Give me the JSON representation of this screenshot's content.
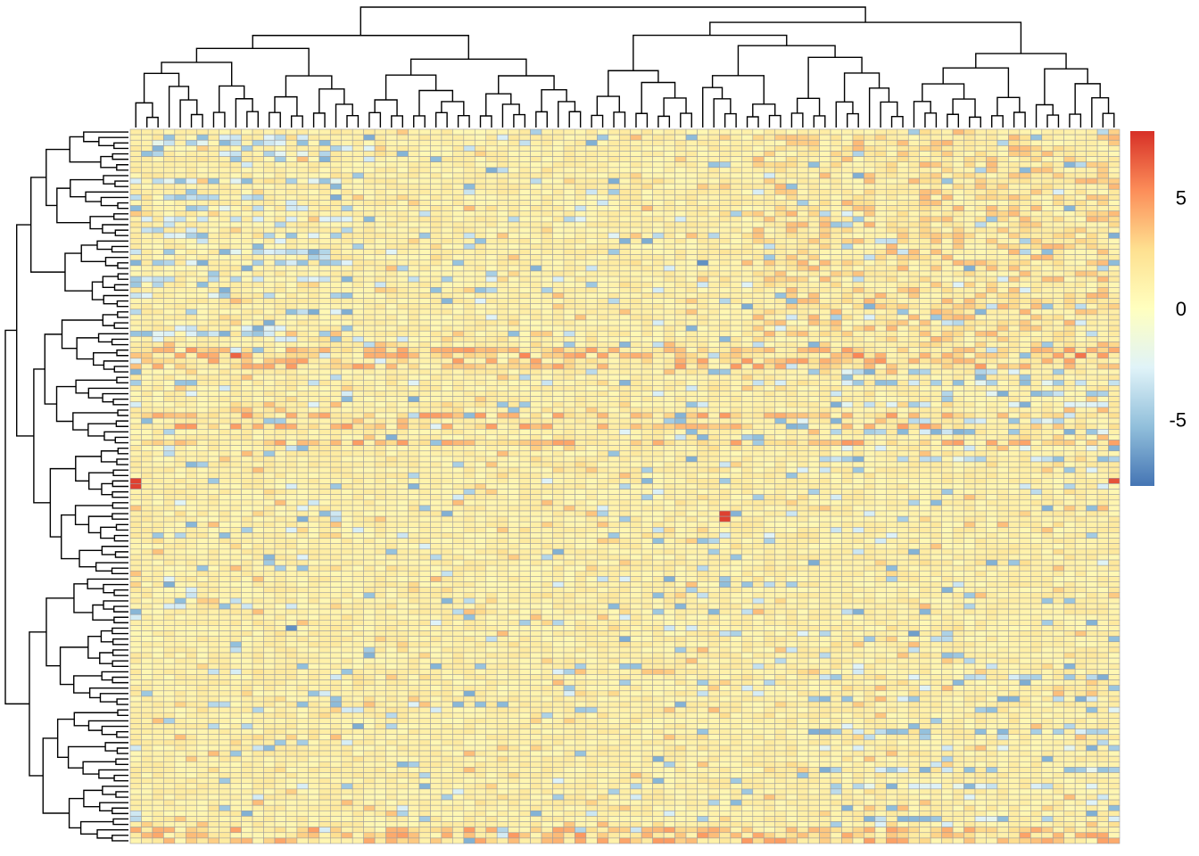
{
  "chart_data": {
    "type": "heatmap",
    "title": "",
    "xlabel": "",
    "ylabel": "",
    "n_cols": 89,
    "n_rows": 131,
    "row_dendrogram": true,
    "col_dendrogram": true,
    "cell_border_color": "#9e9e9e",
    "color_scale": {
      "min": -8,
      "max": 8,
      "stops": [
        "#4575B4",
        "#91BFDB",
        "#E0F3F8",
        "#FFFFBF",
        "#FEE090",
        "#FC8D59",
        "#D73027"
      ],
      "ticks": [
        {
          "value": 5,
          "label": "5"
        },
        {
          "value": 0,
          "label": "0"
        },
        {
          "value": -5,
          "label": "-5"
        }
      ]
    },
    "notable_cells": [
      {
        "row": 64,
        "col": 0,
        "value": 7.5
      },
      {
        "row": 65,
        "col": 0,
        "value": 7.5
      },
      {
        "row": 70,
        "col": 53,
        "value": 7.5
      },
      {
        "row": 71,
        "col": 53,
        "value": 7.5
      },
      {
        "row": 64,
        "col": 88,
        "value": 7.0
      },
      {
        "row": 41,
        "col": 9,
        "value": 6.5
      },
      {
        "row": 41,
        "col": 35,
        "value": 5.5
      },
      {
        "row": 41,
        "col": 65,
        "value": 5.5
      },
      {
        "row": 41,
        "col": 85,
        "value": 6.0
      },
      {
        "row": 24,
        "col": 51,
        "value": -7.0
      },
      {
        "row": 91,
        "col": 14,
        "value": -7.0
      },
      {
        "row": 92,
        "col": 70,
        "value": -6.5
      }
    ],
    "row_bands": {
      "blue_rows_top": [
        1,
        2,
        4,
        9,
        12,
        14,
        16,
        19,
        22,
        24,
        27,
        30,
        33,
        36,
        37
      ],
      "warm_rows": [
        40,
        41,
        42,
        43,
        52,
        54,
        57,
        128,
        129,
        130
      ],
      "blue_rows_right": [
        44,
        46,
        48,
        50,
        53,
        55,
        58,
        60,
        100,
        104,
        110,
        113,
        117,
        120,
        126
      ]
    }
  }
}
